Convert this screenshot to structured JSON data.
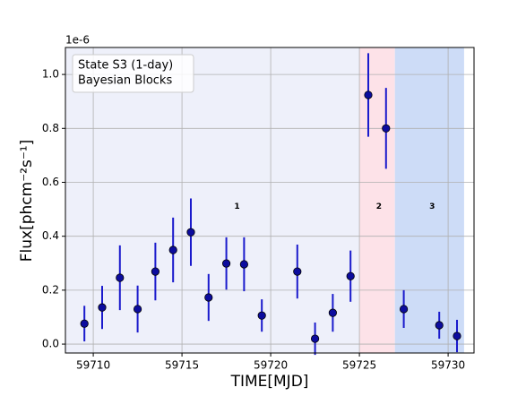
{
  "chart_data": {
    "type": "errorbar",
    "offset_text": "1e-6",
    "xlabel": "TIME[MJD]",
    "ylabel": "Flux[phcm⁻²s⁻¹]",
    "legend_lines": [
      "State S3 (1-day)",
      "Bayesian Blocks"
    ],
    "legend_position": "upper left",
    "grid": true,
    "xlim": [
      59708.43,
      59731.46
    ],
    "ylim": [
      -0.033,
      1.1
    ],
    "xticks": [
      59710,
      59715,
      59720,
      59725,
      59730
    ],
    "yticks": [
      {
        "value": 0,
        "label": "0.0"
      },
      {
        "value": 0.2,
        "label": "0.2"
      },
      {
        "value": 0.4,
        "label": "0.4"
      },
      {
        "value": 0.6,
        "label": "0.6"
      },
      {
        "value": 0.8,
        "label": "0.8"
      },
      {
        "value": 1,
        "label": "1.0"
      }
    ],
    "regions": [
      {
        "label": "1",
        "start": 59708.43,
        "end": 59725,
        "color": "#eef0fa",
        "label_x": 59718.1,
        "label_y": 0.51
      },
      {
        "label": "2",
        "start": 59725,
        "end": 59727,
        "color": "#fde2e8",
        "label_x": 59726.1,
        "label_y": 0.51
      },
      {
        "label": "3",
        "start": 59727,
        "end": 59730.9,
        "color": "#cddcf7",
        "label_x": 59729.1,
        "label_y": 0.51
      }
    ],
    "series": [
      {
        "color": "#1a1acc",
        "marker_color": "#0c0c9e",
        "x": [
          59709.5,
          59710.5,
          59711.5,
          59712.5,
          59713.5,
          59714.5,
          59715.5,
          59716.5,
          59717.5,
          59718.5,
          59719.5,
          59721.5,
          59722.5,
          59723.5,
          59724.5,
          59725.5,
          59726.5,
          59727.5,
          59729.5,
          59730.5
        ],
        "values": [
          0.076,
          0.136,
          0.246,
          0.13,
          0.269,
          0.349,
          0.415,
          0.173,
          0.299,
          0.296,
          0.106,
          0.269,
          0.02,
          0.116,
          0.252,
          0.924,
          0.8,
          0.13,
          0.07,
          0.03
        ],
        "errors": [
          0.066,
          0.08,
          0.12,
          0.087,
          0.107,
          0.12,
          0.125,
          0.087,
          0.097,
          0.1,
          0.06,
          0.1,
          0.06,
          0.07,
          0.095,
          0.155,
          0.15,
          0.07,
          0.05,
          0.06
        ]
      }
    ]
  }
}
